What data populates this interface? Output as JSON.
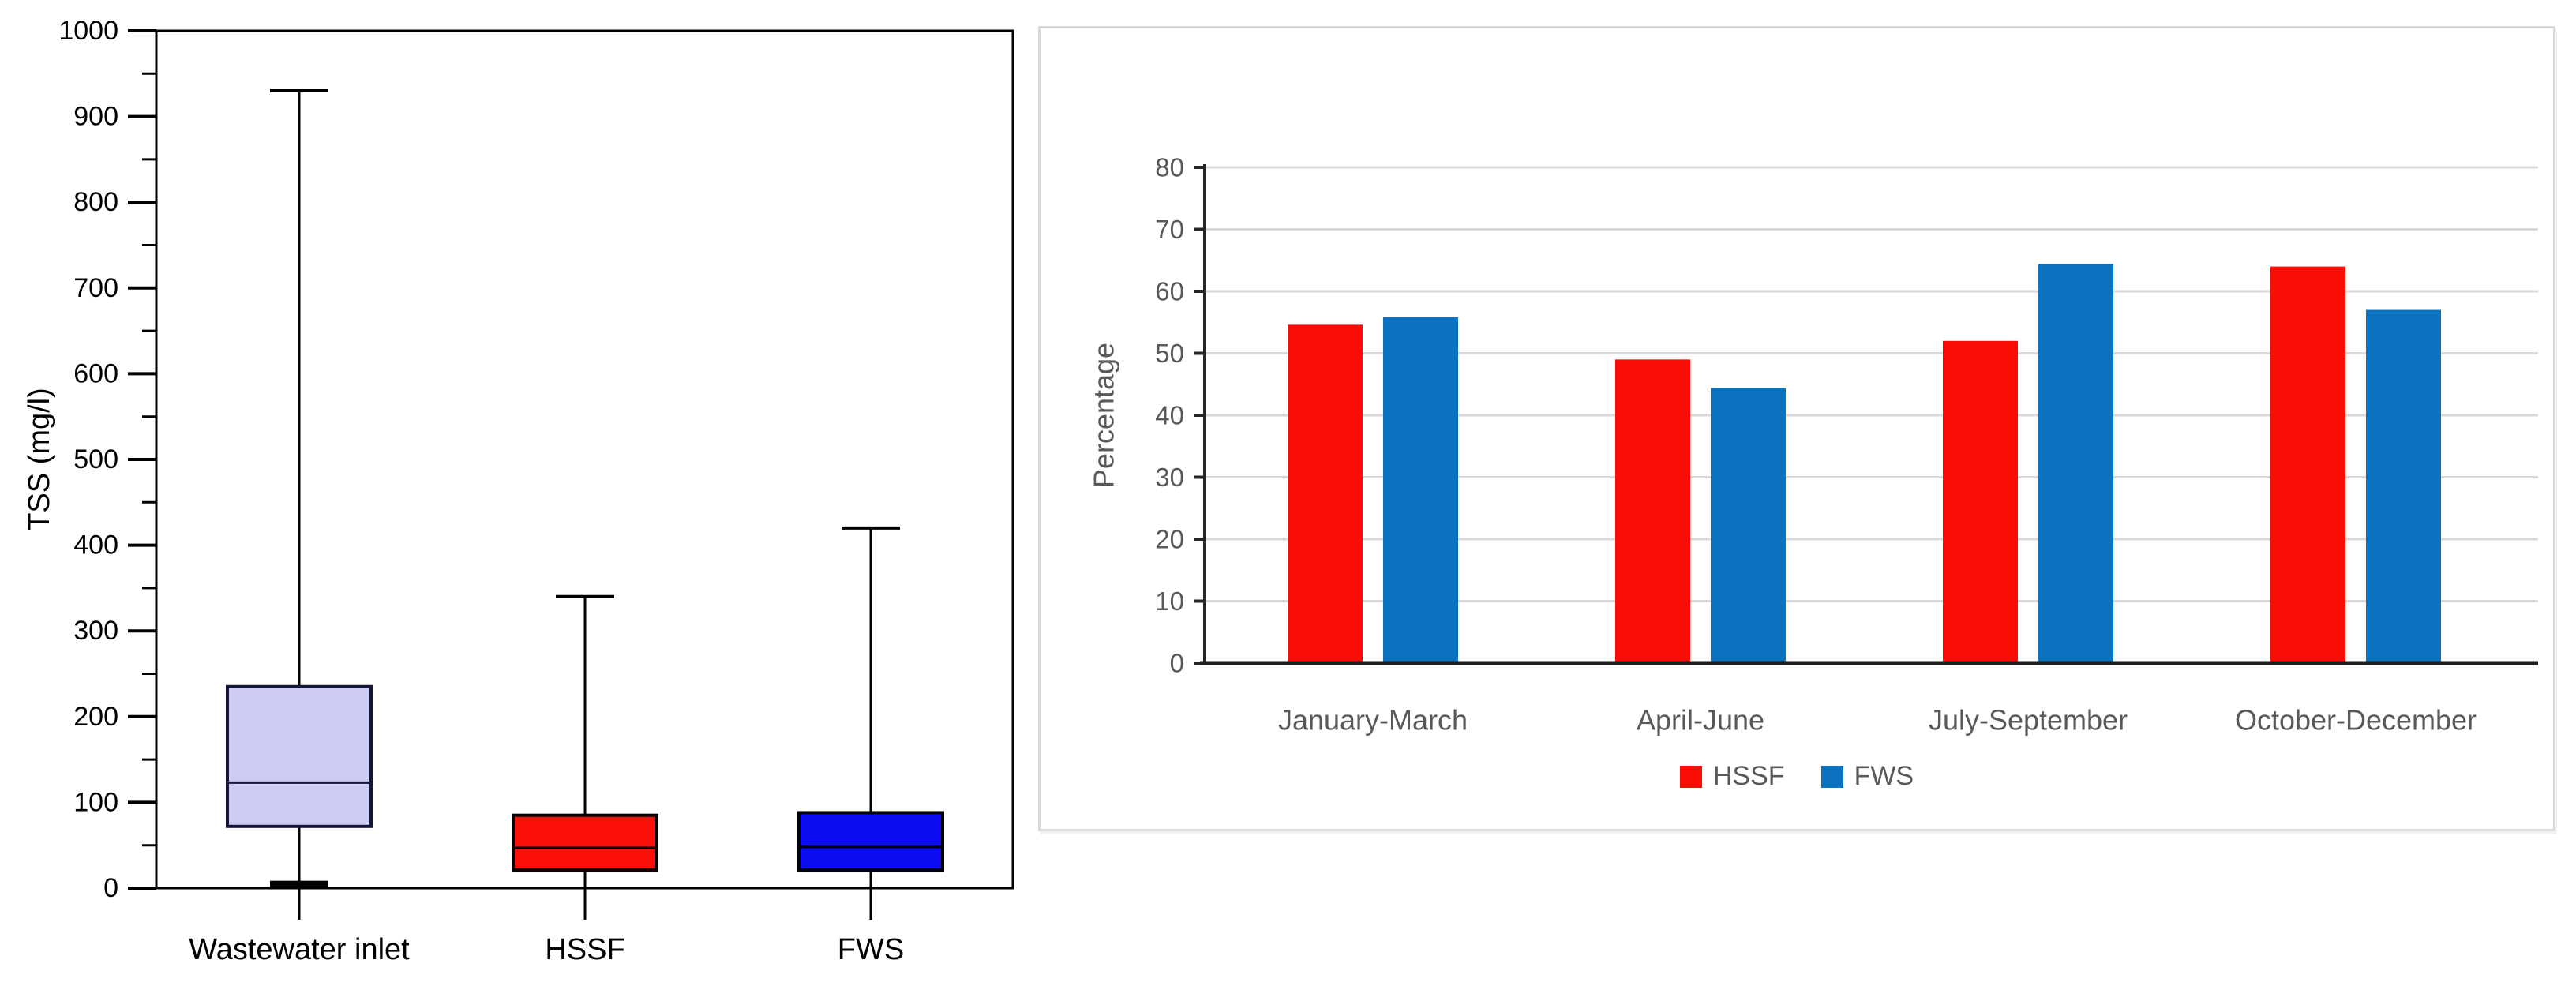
{
  "figure": {
    "background": "#ffffff",
    "panel_border_color": "#d8d8d8",
    "axis_text_color_right": "#595959",
    "axis_text_color_left": "#000000"
  },
  "chart_data": [
    {
      "type": "box",
      "title": "",
      "ylabel": "TSS (mg/l)",
      "xlabel": "",
      "ylim": [
        0,
        1000
      ],
      "ytick_major": 100,
      "ytick_minor": 50,
      "grid": false,
      "categories": [
        "Wastewater inlet",
        "HSSF",
        "FWS"
      ],
      "boxes": [
        {
          "category": "Wastewater inlet",
          "whisker_low": 4,
          "q1": 72,
          "median": 123,
          "q3": 235,
          "whisker_high": 930,
          "fill": "#cdccf5",
          "stroke": "#14143c",
          "thick_low_cap": true
        },
        {
          "category": "HSSF",
          "whisker_low": 0,
          "q1": 21,
          "median": 47,
          "q3": 85,
          "whisker_high": 340,
          "fill": "#fa0f0a",
          "stroke": "#000000",
          "thick_low_cap": false
        },
        {
          "category": "FWS",
          "whisker_low": 0,
          "q1": 21,
          "median": 48,
          "q3": 88,
          "whisker_high": 420,
          "fill": "#0d0df2",
          "stroke": "#000000",
          "thick_low_cap": false
        }
      ]
    },
    {
      "type": "bar",
      "title": "",
      "ylabel": "Percentage",
      "xlabel": "",
      "ylim": [
        0,
        80
      ],
      "ytick": 10,
      "grid": true,
      "gridline_color": "#d9d9d9",
      "axis_line_color": "#262626",
      "legend_position": "bottom",
      "categories": [
        "January-March",
        "April-June",
        "July-September",
        "October-December"
      ],
      "series": [
        {
          "name": "HSSF",
          "color": "#fb0d07",
          "values": [
            54.6,
            49.0,
            52.0,
            64.0
          ]
        },
        {
          "name": "FWS",
          "color": "#0b72c0",
          "values": [
            55.8,
            44.4,
            64.4,
            57.0
          ]
        }
      ]
    }
  ]
}
